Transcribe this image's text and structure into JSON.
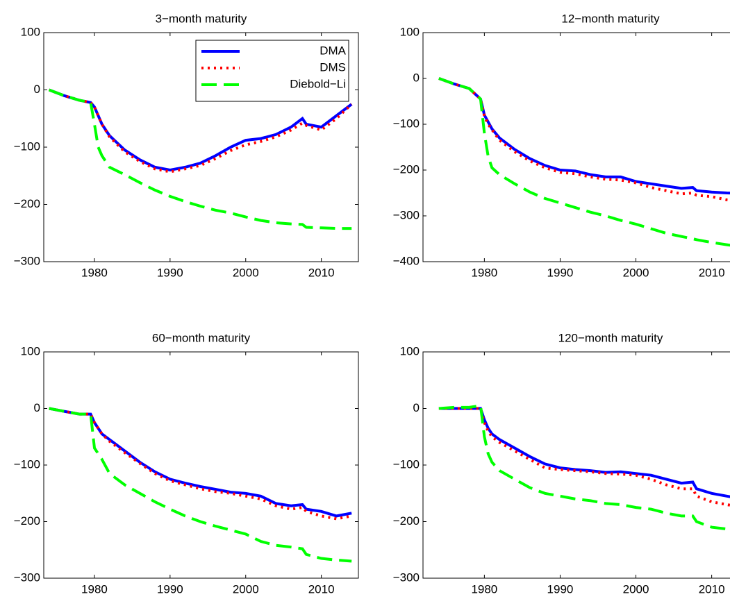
{
  "chart_data": [
    {
      "type": "line",
      "title": "3−month maturity",
      "x": [
        1974,
        1976,
        1978,
        1979.5,
        1980,
        1980.5,
        1981,
        1982,
        1984,
        1986,
        1988,
        1990,
        1992,
        1994,
        1996,
        1998,
        2000,
        2002,
        2004,
        2006,
        2007.5,
        2008,
        2010,
        2012,
        2014
      ],
      "series": [
        {
          "name": "DMA",
          "color": "#0000ff",
          "dash": "solid",
          "values": [
            0,
            -10,
            -18,
            -22,
            -30,
            -45,
            -60,
            -80,
            -105,
            -122,
            -135,
            -140,
            -135,
            -128,
            -115,
            -100,
            -88,
            -85,
            -78,
            -65,
            -50,
            -60,
            -65,
            -45,
            -25
          ]
        },
        {
          "name": "DMS",
          "color": "#ff0000",
          "dash": "dotted",
          "values": [
            0,
            -10,
            -18,
            -22,
            -30,
            -45,
            -60,
            -82,
            -108,
            -125,
            -138,
            -143,
            -138,
            -132,
            -120,
            -106,
            -96,
            -90,
            -82,
            -70,
            -58,
            -62,
            -70,
            -50,
            -25
          ]
        },
        {
          "name": "Diebold−Li",
          "color": "#00ff00",
          "dash": "dashed",
          "values": [
            0,
            -10,
            -18,
            -22,
            -60,
            -100,
            -115,
            -135,
            -148,
            -162,
            -175,
            -186,
            -195,
            -203,
            -210,
            -215,
            -222,
            -228,
            -232,
            -234,
            -235,
            -240,
            -241,
            -242,
            -242
          ]
        }
      ],
      "xlim": [
        1973.3,
        2014.9
      ],
      "xticks": [
        1980,
        1990,
        2000,
        2010
      ],
      "ylim": [
        -300,
        100
      ],
      "yticks": [
        {
          "value": -300,
          "label": "−300"
        },
        {
          "value": -200,
          "label": "−200"
        },
        {
          "value": -100,
          "label": "−100"
        },
        0,
        100
      ],
      "legend": "upper right"
    },
    {
      "type": "line",
      "title": "12−month maturity",
      "x": [
        1974,
        1976,
        1978,
        1979.5,
        1980,
        1980.5,
        1981,
        1982,
        1984,
        1986,
        1988,
        1990,
        1992,
        1994,
        1996,
        1998,
        2000,
        2002,
        2004,
        2006,
        2007.5,
        2008,
        2010,
        2012,
        2014
      ],
      "series": [
        {
          "name": "DMA",
          "color": "#0000ff",
          "dash": "solid",
          "values": [
            0,
            -12,
            -22,
            -45,
            -80,
            -95,
            -110,
            -130,
            -155,
            -175,
            -190,
            -200,
            -202,
            -210,
            -215,
            -215,
            -225,
            -230,
            -235,
            -240,
            -238,
            -245,
            -248,
            -250,
            -251
          ]
        },
        {
          "name": "DMS",
          "color": "#ff0000",
          "dash": "dotted",
          "values": [
            0,
            -12,
            -22,
            -45,
            -82,
            -100,
            -112,
            -135,
            -160,
            -180,
            -195,
            -205,
            -208,
            -215,
            -220,
            -222,
            -228,
            -238,
            -245,
            -252,
            -250,
            -255,
            -258,
            -265,
            -268
          ]
        },
        {
          "name": "Diebold−Li",
          "color": "#00ff00",
          "dash": "dashed",
          "values": [
            0,
            -12,
            -22,
            -45,
            -120,
            -170,
            -195,
            -210,
            -230,
            -248,
            -262,
            -272,
            -282,
            -292,
            -300,
            -310,
            -318,
            -328,
            -338,
            -345,
            -350,
            -352,
            -358,
            -363,
            -368
          ]
        }
      ],
      "xlim": [
        1971.9,
        2021.4
      ],
      "xticks": [
        1980,
        1990,
        2000,
        2010
      ],
      "ylim": [
        -400,
        100
      ],
      "yticks": [
        {
          "value": -400,
          "label": "−400"
        },
        {
          "value": -300,
          "label": "−300"
        },
        {
          "value": -200,
          "label": "−200"
        },
        {
          "value": -100,
          "label": "−100"
        },
        0,
        100
      ]
    },
    {
      "type": "line",
      "title": "60−month maturity",
      "x": [
        1974,
        1976,
        1978,
        1979.5,
        1980,
        1980.5,
        1981,
        1982,
        1984,
        1986,
        1988,
        1990,
        1992,
        1994,
        1996,
        1998,
        2000,
        2002,
        2004,
        2006,
        2007.5,
        2008,
        2010,
        2012,
        2014
      ],
      "series": [
        {
          "name": "DMA",
          "color": "#0000ff",
          "dash": "solid",
          "values": [
            0,
            -5,
            -10,
            -10,
            -25,
            -35,
            -45,
            -55,
            -75,
            -95,
            -112,
            -125,
            -132,
            -138,
            -143,
            -148,
            -150,
            -155,
            -168,
            -172,
            -170,
            -178,
            -182,
            -190,
            -185
          ]
        },
        {
          "name": "DMS",
          "color": "#ff0000",
          "dash": "dotted",
          "values": [
            0,
            -5,
            -10,
            -10,
            -25,
            -35,
            -45,
            -58,
            -78,
            -97,
            -115,
            -128,
            -135,
            -142,
            -147,
            -150,
            -155,
            -160,
            -172,
            -178,
            -175,
            -182,
            -190,
            -195,
            -190
          ]
        },
        {
          "name": "Diebold−Li",
          "color": "#00ff00",
          "dash": "dashed",
          "values": [
            0,
            -5,
            -10,
            -10,
            -70,
            -80,
            -90,
            -115,
            -135,
            -150,
            -165,
            -178,
            -190,
            -200,
            -208,
            -215,
            -222,
            -235,
            -242,
            -245,
            -248,
            -258,
            -265,
            -268,
            -270
          ]
        }
      ],
      "xlim": [
        1973.3,
        2014.9
      ],
      "xticks": [
        1980,
        1990,
        2000,
        2010
      ],
      "ylim": [
        -300,
        100
      ],
      "yticks": [
        {
          "value": -300,
          "label": "−300"
        },
        {
          "value": -200,
          "label": "−200"
        },
        {
          "value": -100,
          "label": "−100"
        },
        0,
        100
      ]
    },
    {
      "type": "line",
      "title": "120−month maturity",
      "x": [
        1974,
        1976,
        1978,
        1979.5,
        1980,
        1980.5,
        1981,
        1982,
        1984,
        1986,
        1988,
        1990,
        1992,
        1994,
        1996,
        1998,
        2000,
        2002,
        2004,
        2006,
        2007.5,
        2008,
        2010,
        2012,
        2014
      ],
      "series": [
        {
          "name": "DMA",
          "color": "#0000ff",
          "dash": "solid",
          "values": [
            0,
            0,
            0,
            0,
            -20,
            -35,
            -45,
            -55,
            -70,
            -85,
            -98,
            -105,
            -108,
            -110,
            -113,
            -112,
            -115,
            -118,
            -125,
            -132,
            -130,
            -142,
            -150,
            -155,
            -160
          ]
        },
        {
          "name": "DMS",
          "color": "#ff0000",
          "dash": "dotted",
          "values": [
            0,
            0,
            0,
            0,
            -25,
            -40,
            -50,
            -60,
            -75,
            -90,
            -105,
            -108,
            -110,
            -112,
            -115,
            -116,
            -118,
            -125,
            -135,
            -142,
            -142,
            -155,
            -165,
            -170,
            -175
          ]
        },
        {
          "name": "Diebold−Li",
          "color": "#00ff00",
          "dash": "dashed",
          "values": [
            0,
            2,
            2,
            5,
            -50,
            -80,
            -95,
            -110,
            -125,
            -140,
            -150,
            -155,
            -160,
            -163,
            -168,
            -170,
            -175,
            -178,
            -185,
            -190,
            -190,
            -200,
            -210,
            -213,
            -217
          ]
        }
      ],
      "xlim": [
        1971.9,
        2021.4
      ],
      "xticks": [
        1980,
        1990,
        2000,
        2010
      ],
      "ylim": [
        -300,
        100
      ],
      "yticks": [
        {
          "value": -300,
          "label": "−300"
        },
        {
          "value": -200,
          "label": "−200"
        },
        {
          "value": -100,
          "label": "−100"
        },
        0,
        100
      ]
    }
  ]
}
